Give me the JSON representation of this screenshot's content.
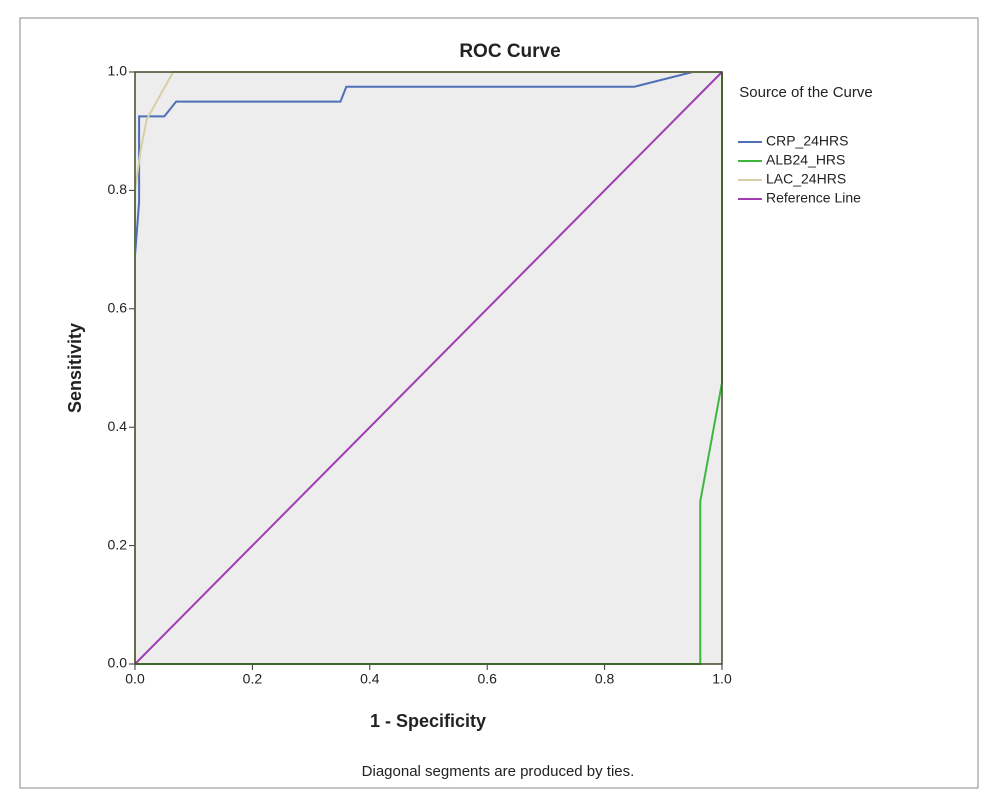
{
  "chart_data": {
    "type": "line",
    "title": "ROC Curve",
    "x_label": "1 - Specificity",
    "y_label": "Sensitivity",
    "footnote": "Diagonal segments are produced by ties.",
    "legend_title": "Source of the Curve",
    "legend_position": "right",
    "grid": false,
    "background": "#ededed",
    "xlim": [
      0,
      1
    ],
    "ylim": [
      0,
      1
    ],
    "xticks": [
      {
        "value": 0,
        "label": "0.0"
      },
      0.2,
      0.4,
      0.6,
      0.8,
      {
        "value": 1,
        "label": "1.0"
      }
    ],
    "yticks": [
      {
        "value": 0,
        "label": "0.0"
      },
      0.2,
      0.4,
      0.6,
      0.8,
      {
        "value": 1,
        "label": "1.0"
      }
    ],
    "series": [
      {
        "name": "CRP_24HRS",
        "color": "#4f6fb6",
        "x": [
          0,
          0,
          0.007,
          0.007,
          0.05,
          0.07,
          0.35,
          0.36,
          0.85,
          0.95,
          1
        ],
        "values": [
          0,
          0.69,
          0.78,
          0.925,
          0.925,
          0.95,
          0.95,
          0.975,
          0.975,
          1,
          1
        ]
      },
      {
        "name": "ALB24_HRS",
        "color": "#3db83d",
        "x": [
          0,
          0.963,
          0.963,
          1,
          1
        ],
        "values": [
          0,
          0,
          0.275,
          0.475,
          1
        ]
      },
      {
        "name": "LAC_24HRS",
        "color": "#d6d0a4",
        "x": [
          0,
          0,
          0.01,
          0.02,
          0.065,
          1
        ],
        "values": [
          0,
          0.8,
          0.87,
          0.92,
          1,
          1
        ]
      },
      {
        "name": "Reference Line",
        "color": "#a03cb4",
        "x": [
          0,
          1
        ],
        "values": [
          0,
          1
        ]
      }
    ]
  }
}
